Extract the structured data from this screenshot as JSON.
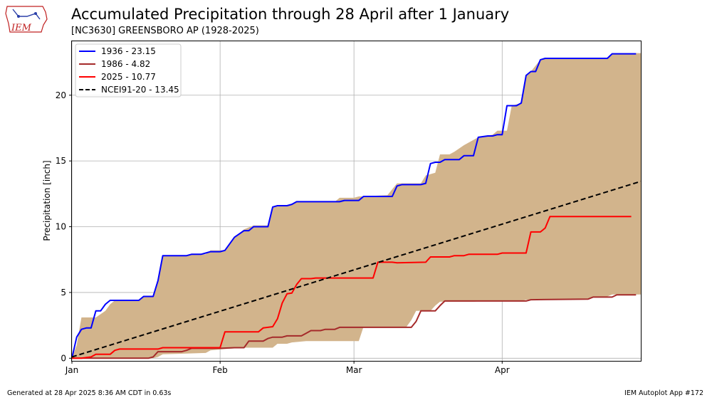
{
  "header": {
    "title": "Accumulated Precipitation through 28 April after 1 January",
    "subtitle": "[NC3630] GREENSBORO  AP (1928-2025)",
    "logo_text": "IEM"
  },
  "footer": {
    "generated": "Generated at 28 Apr 2025 8:36 AM CDT in 0.63s",
    "app": "IEM Autoplot App #172"
  },
  "colors": {
    "range_fill": "#d2b48c",
    "series_1936": "#0000ff",
    "series_1986": "#a52a2a",
    "series_2025": "#ff0000",
    "climo": "#000000",
    "grid": "#b0b0b0"
  },
  "chart_data": {
    "type": "line",
    "title": "Accumulated Precipitation through 28 April after 1 January",
    "xlabel": "",
    "ylabel": "Precipitation [inch]",
    "xlim": [
      1,
      120
    ],
    "ylim": [
      -0.2,
      24.1
    ],
    "grid": true,
    "legend_position": "top-left",
    "x_ticks": [
      {
        "label": "Jan",
        "day": 1
      },
      {
        "label": "Feb",
        "day": 32
      },
      {
        "label": "Mar",
        "day": 60
      },
      {
        "label": "Apr",
        "day": 91
      }
    ],
    "y_ticks": [
      0,
      5,
      10,
      15,
      20
    ],
    "range_band": {
      "name": "min-max range",
      "max": [
        [
          1,
          0
        ],
        [
          2,
          1.0
        ],
        [
          3,
          3.1
        ],
        [
          6,
          3.1
        ],
        [
          8,
          3.6
        ],
        [
          9,
          4.1
        ],
        [
          10,
          4.4
        ],
        [
          15,
          4.4
        ],
        [
          16,
          4.7
        ],
        [
          18,
          4.7
        ],
        [
          19,
          5.9
        ],
        [
          20,
          7.8
        ],
        [
          25,
          7.8
        ],
        [
          26,
          7.9
        ],
        [
          29,
          7.9
        ],
        [
          30,
          8.2
        ],
        [
          33,
          8.2
        ],
        [
          35,
          9.2
        ],
        [
          37,
          9.8
        ],
        [
          39,
          10.1
        ],
        [
          42,
          10.1
        ],
        [
          43,
          11.5
        ],
        [
          46,
          11.6
        ],
        [
          48,
          11.9
        ],
        [
          56,
          11.9
        ],
        [
          57,
          12.2
        ],
        [
          60,
          12.2
        ],
        [
          61,
          12.3
        ],
        [
          67,
          12.4
        ],
        [
          69,
          13.3
        ],
        [
          74,
          13.3
        ],
        [
          75,
          13.9
        ],
        [
          77,
          14.1
        ],
        [
          78,
          15.5
        ],
        [
          80,
          15.5
        ],
        [
          81,
          15.7
        ],
        [
          83,
          16.2
        ],
        [
          86,
          16.8
        ],
        [
          89,
          17.0
        ],
        [
          90,
          17.3
        ],
        [
          92,
          17.3
        ],
        [
          93,
          19.2
        ],
        [
          95,
          19.4
        ],
        [
          96,
          21.5
        ],
        [
          97,
          21.8
        ],
        [
          99,
          22.7
        ],
        [
          100,
          22.8
        ],
        [
          113,
          22.8
        ],
        [
          114,
          23.2
        ],
        [
          120,
          23.2
        ]
      ],
      "min": [
        [
          1,
          0
        ],
        [
          18,
          0
        ],
        [
          19,
          0.1
        ],
        [
          20,
          0.3
        ],
        [
          29,
          0.4
        ],
        [
          30,
          0.6
        ],
        [
          33,
          0.7
        ],
        [
          37,
          0.8
        ],
        [
          43,
          0.8
        ],
        [
          44,
          1.1
        ],
        [
          46,
          1.1
        ],
        [
          47,
          1.2
        ],
        [
          50,
          1.3
        ],
        [
          61,
          1.3
        ],
        [
          62,
          2.4
        ],
        [
          71,
          2.4
        ],
        [
          72,
          2.9
        ],
        [
          73,
          3.6
        ],
        [
          76,
          3.6
        ],
        [
          77,
          4.0
        ],
        [
          78,
          4.3
        ],
        [
          85,
          4.3
        ],
        [
          87,
          4.35
        ],
        [
          95,
          4.35
        ],
        [
          96,
          4.45
        ],
        [
          109,
          4.5
        ],
        [
          110,
          4.7
        ],
        [
          113,
          4.7
        ],
        [
          114,
          4.85
        ],
        [
          120,
          4.85
        ]
      ]
    },
    "series": [
      {
        "name": "1936 - 23.15",
        "color": "#0000ff",
        "points": [
          [
            1,
            0
          ],
          [
            2,
            1.6
          ],
          [
            3,
            2.2
          ],
          [
            4,
            2.3
          ],
          [
            5,
            2.3
          ],
          [
            6,
            3.6
          ],
          [
            7,
            3.6
          ],
          [
            8,
            4.1
          ],
          [
            9,
            4.4
          ],
          [
            15,
            4.4
          ],
          [
            16,
            4.7
          ],
          [
            18,
            4.7
          ],
          [
            19,
            5.9
          ],
          [
            20,
            7.8
          ],
          [
            25,
            7.8
          ],
          [
            26,
            7.9
          ],
          [
            28,
            7.9
          ],
          [
            29,
            8.0
          ],
          [
            30,
            8.1
          ],
          [
            32,
            8.1
          ],
          [
            33,
            8.2
          ],
          [
            35,
            9.2
          ],
          [
            37,
            9.7
          ],
          [
            38,
            9.7
          ],
          [
            39,
            10.0
          ],
          [
            42,
            10.0
          ],
          [
            43,
            11.5
          ],
          [
            44,
            11.6
          ],
          [
            46,
            11.6
          ],
          [
            47,
            11.7
          ],
          [
            48,
            11.9
          ],
          [
            57,
            11.9
          ],
          [
            58,
            12.0
          ],
          [
            61,
            12.0
          ],
          [
            62,
            12.3
          ],
          [
            68,
            12.3
          ],
          [
            69,
            13.1
          ],
          [
            70,
            13.2
          ],
          [
            74,
            13.2
          ],
          [
            75,
            13.3
          ],
          [
            76,
            14.8
          ],
          [
            77,
            14.9
          ],
          [
            78,
            14.9
          ],
          [
            79,
            15.1
          ],
          [
            82,
            15.1
          ],
          [
            83,
            15.4
          ],
          [
            85,
            15.4
          ],
          [
            86,
            16.8
          ],
          [
            88,
            16.9
          ],
          [
            89,
            16.9
          ],
          [
            90,
            17.0
          ],
          [
            91,
            17.0
          ],
          [
            92,
            19.2
          ],
          [
            94,
            19.2
          ],
          [
            95,
            19.4
          ],
          [
            96,
            21.5
          ],
          [
            97,
            21.8
          ],
          [
            98,
            21.8
          ],
          [
            99,
            22.7
          ],
          [
            100,
            22.8
          ],
          [
            113,
            22.8
          ],
          [
            114,
            23.15
          ],
          [
            119,
            23.15
          ]
        ]
      },
      {
        "name": "1986 - 4.82",
        "color": "#a52a2a",
        "points": [
          [
            1,
            0
          ],
          [
            17,
            0
          ],
          [
            18,
            0.1
          ],
          [
            19,
            0.5
          ],
          [
            22,
            0.5
          ],
          [
            24,
            0.5
          ],
          [
            25,
            0.6
          ],
          [
            26,
            0.75
          ],
          [
            32,
            0.75
          ],
          [
            35,
            0.8
          ],
          [
            37,
            0.8
          ],
          [
            38,
            1.3
          ],
          [
            41,
            1.3
          ],
          [
            42,
            1.5
          ],
          [
            43,
            1.6
          ],
          [
            45,
            1.6
          ],
          [
            46,
            1.7
          ],
          [
            49,
            1.7
          ],
          [
            50,
            1.9
          ],
          [
            51,
            2.1
          ],
          [
            53,
            2.1
          ],
          [
            54,
            2.2
          ],
          [
            56,
            2.2
          ],
          [
            57,
            2.35
          ],
          [
            72,
            2.35
          ],
          [
            73,
            2.8
          ],
          [
            74,
            3.6
          ],
          [
            77,
            3.6
          ],
          [
            78,
            4.0
          ],
          [
            79,
            4.35
          ],
          [
            96,
            4.35
          ],
          [
            97,
            4.45
          ],
          [
            109,
            4.5
          ],
          [
            110,
            4.65
          ],
          [
            114,
            4.65
          ],
          [
            115,
            4.82
          ],
          [
            119,
            4.82
          ]
        ]
      },
      {
        "name": "2025 - 10.77",
        "color": "#ff0000",
        "points": [
          [
            1,
            0
          ],
          [
            3,
            0
          ],
          [
            5,
            0.1
          ],
          [
            6,
            0.3
          ],
          [
            9,
            0.3
          ],
          [
            10,
            0.6
          ],
          [
            11,
            0.7
          ],
          [
            19,
            0.7
          ],
          [
            20,
            0.8
          ],
          [
            32,
            0.8
          ],
          [
            33,
            2.0
          ],
          [
            40,
            2.0
          ],
          [
            41,
            2.3
          ],
          [
            43,
            2.4
          ],
          [
            44,
            3.0
          ],
          [
            45,
            4.2
          ],
          [
            46,
            4.9
          ],
          [
            47,
            4.95
          ],
          [
            48,
            5.6
          ],
          [
            49,
            6.05
          ],
          [
            51,
            6.05
          ],
          [
            52,
            6.1
          ],
          [
            64,
            6.1
          ],
          [
            65,
            7.3
          ],
          [
            68,
            7.3
          ],
          [
            69,
            7.25
          ],
          [
            75,
            7.3
          ],
          [
            76,
            7.7
          ],
          [
            80,
            7.7
          ],
          [
            81,
            7.8
          ],
          [
            83,
            7.8
          ],
          [
            84,
            7.9
          ],
          [
            90,
            7.9
          ],
          [
            91,
            8.0
          ],
          [
            96,
            8.0
          ],
          [
            97,
            9.6
          ],
          [
            99,
            9.6
          ],
          [
            100,
            9.9
          ],
          [
            101,
            10.77
          ],
          [
            117,
            10.77
          ],
          [
            118,
            10.77
          ]
        ]
      },
      {
        "name": "NCEI91-20 - 13.45",
        "color": "#000000",
        "dashed": true,
        "points": [
          [
            1,
            0.1
          ],
          [
            120,
            13.45
          ]
        ]
      }
    ]
  }
}
